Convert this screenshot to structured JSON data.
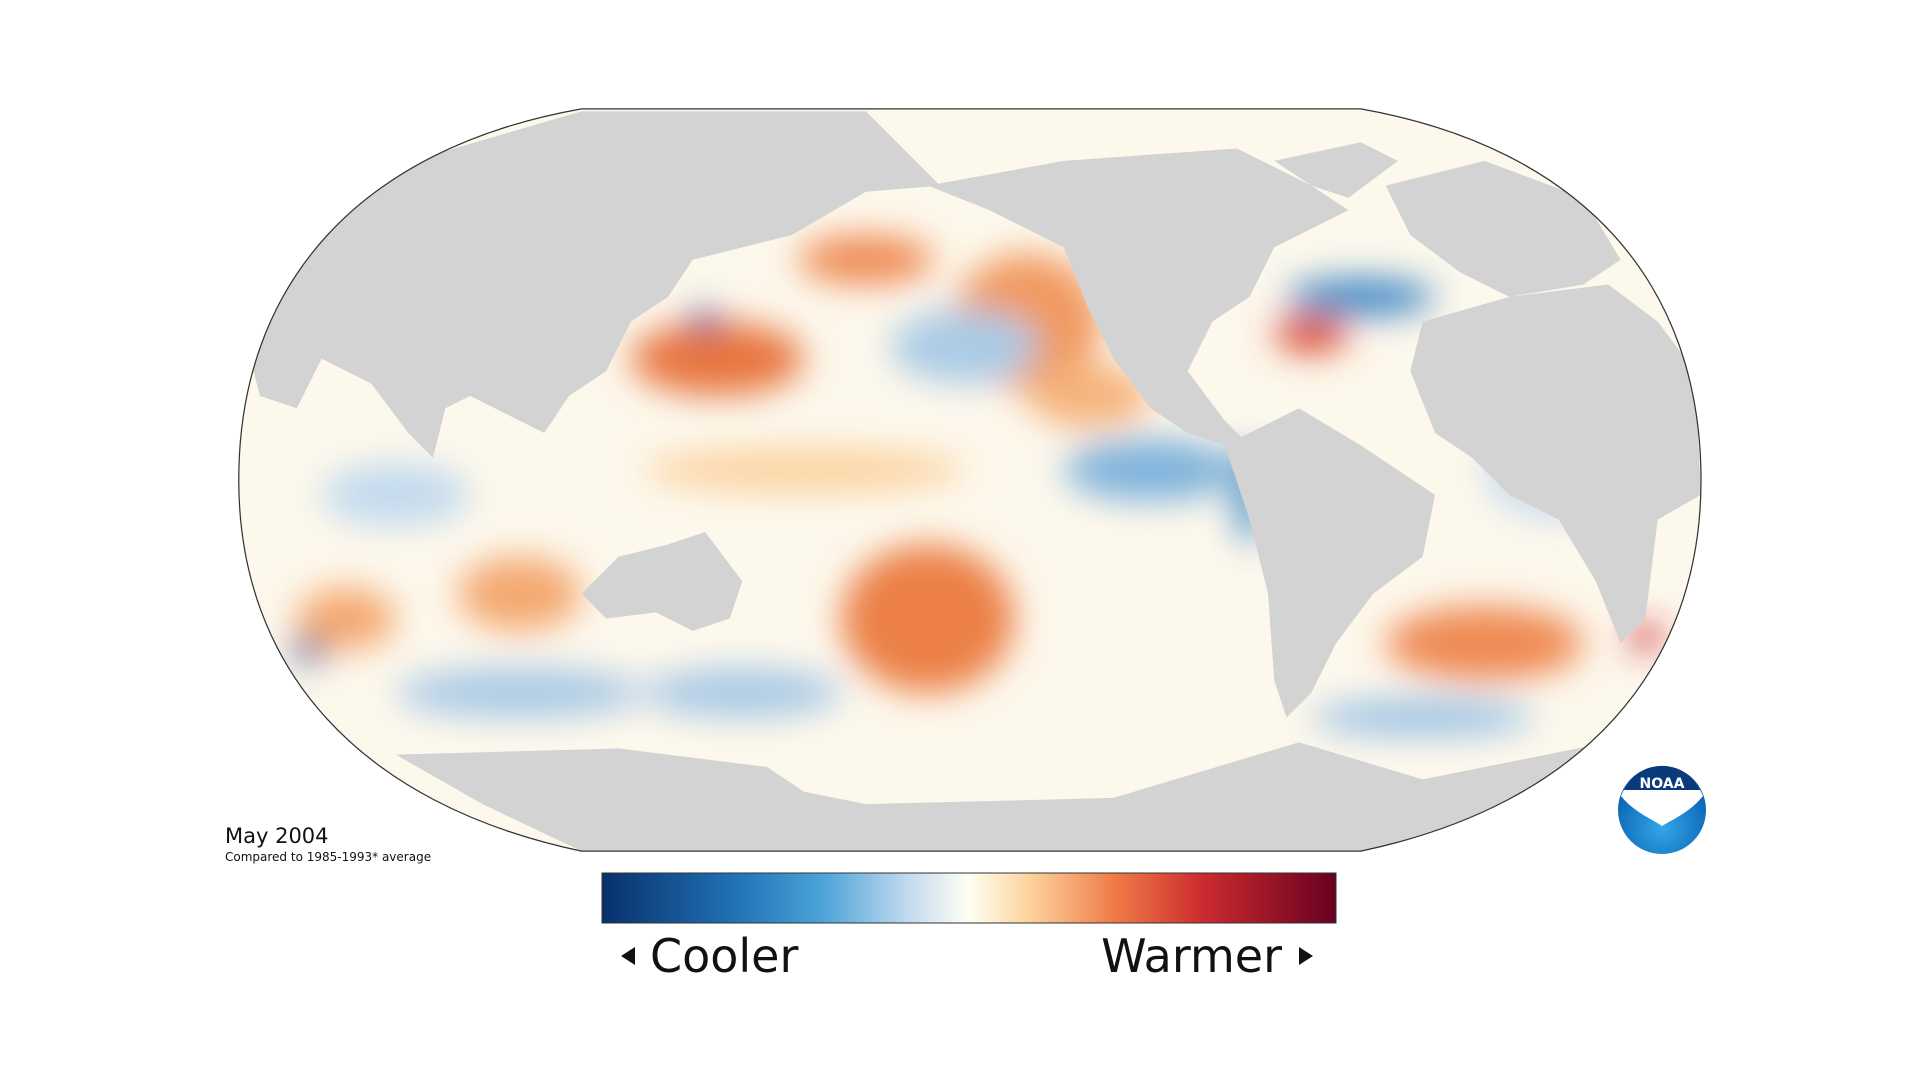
{
  "map": {
    "title": "May 2004",
    "subtitle": "Compared to 1985-1993* average"
  },
  "legend": {
    "low_label": "Cooler",
    "high_label": "Warmer"
  },
  "logo": {
    "text": "NOAA"
  }
}
